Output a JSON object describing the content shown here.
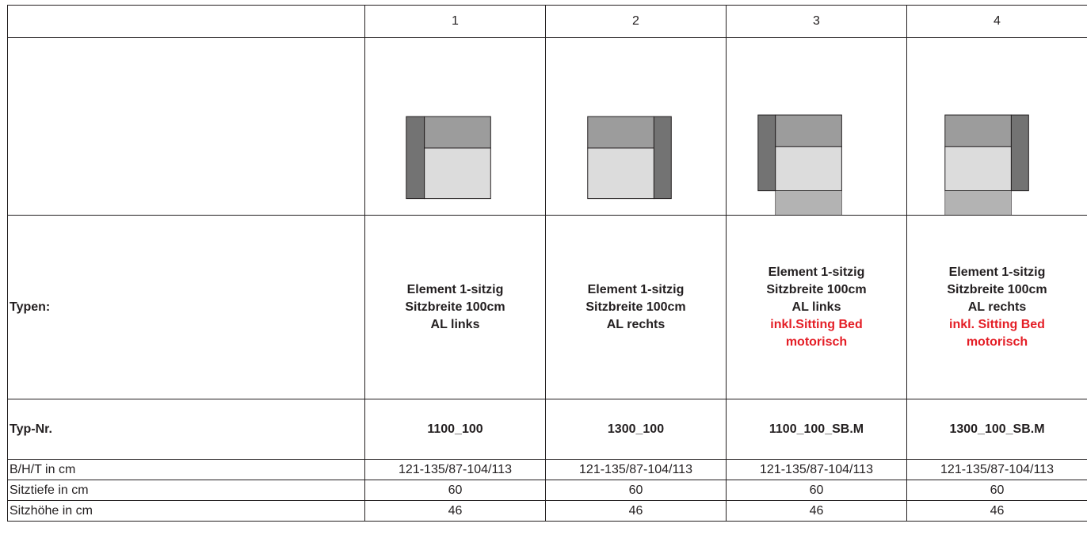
{
  "header": {
    "corner": "",
    "columns": [
      "1",
      "2",
      "3",
      "4"
    ]
  },
  "diagrams": [
    {
      "name": "armrest-left",
      "armrest": "left",
      "sitting_bed": false
    },
    {
      "name": "armrest-right",
      "armrest": "right",
      "sitting_bed": false
    },
    {
      "name": "armrest-left-bed",
      "armrest": "left",
      "sitting_bed": true
    },
    {
      "name": "armrest-right-bed",
      "armrest": "right",
      "sitting_bed": true
    }
  ],
  "colors": {
    "armrest": "#737373",
    "backrest": "#9c9c9c",
    "seat": "#dcdcdc",
    "bed": "#b3b3b3",
    "highlight_red": "#e41e26",
    "border": "#231f20"
  },
  "rows": {
    "types_label": "Typen:",
    "types": [
      {
        "lines": [
          "Element 1-sitzig",
          "Sitzbreite 100cm",
          "AL links"
        ],
        "red_lines": []
      },
      {
        "lines": [
          "Element 1-sitzig",
          "Sitzbreite 100cm",
          "AL rechts"
        ],
        "red_lines": []
      },
      {
        "lines": [
          "Element 1-sitzig",
          "Sitzbreite 100cm",
          "AL links"
        ],
        "red_lines": [
          "inkl.Sitting Bed",
          "motorisch"
        ]
      },
      {
        "lines": [
          "Element 1-sitzig",
          "Sitzbreite 100cm",
          "AL rechts"
        ],
        "red_lines": [
          "inkl. Sitting Bed",
          "motorisch"
        ]
      }
    ],
    "typnr_label": "Typ-Nr.",
    "typnr": [
      "1100_100",
      "1300_100",
      "1100_100_SB.M",
      "1300_100_SB.M"
    ],
    "dims_label": "B/H/T in cm",
    "dims": [
      "121-135/87-104/113",
      "121-135/87-104/113",
      "121-135/87-104/113",
      "121-135/87-104/113"
    ],
    "depth_label": "Sitztiefe in cm",
    "depth": [
      "60",
      "60",
      "60",
      "60"
    ],
    "height_label": "Sitzhöhe in cm",
    "height": [
      "46",
      "46",
      "46",
      "46"
    ]
  }
}
